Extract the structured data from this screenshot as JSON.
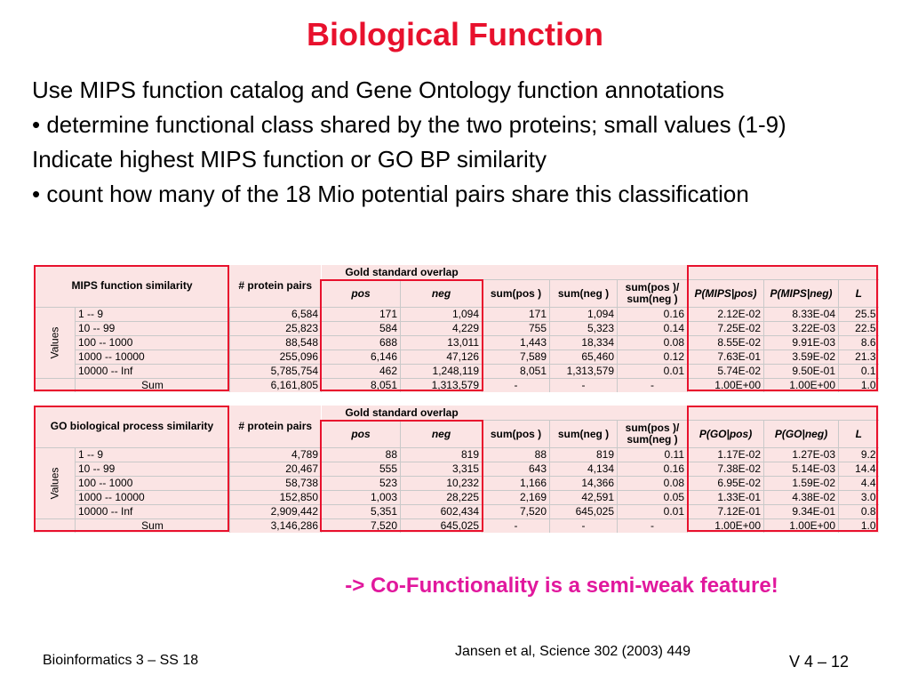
{
  "slide": {
    "title": "Biological Function",
    "bullets": [
      "Use MIPS function catalog and Gene Ontology function annotations",
      "• determine functional class shared by the two proteins; small values (1-9)",
      "Indicate highest MIPS function or GO BP similarity",
      "• count how many of the 18 Mio potential pairs share this classification"
    ],
    "conclusion": "-> Co-Functionality is a semi-weak feature!",
    "footer": {
      "course": "Bioinformatics 3 – SS 18",
      "citation": "Jansen et al, Science 302 (2003) 449",
      "page": "V 4 –  12"
    }
  },
  "tables": [
    {
      "id": "mips",
      "name": "MIPS function similarity",
      "gold_label": "Gold standard overlap",
      "row_axis_label": "Values",
      "headers": {
        "pairs": "# protein pairs",
        "pos": "pos",
        "neg": "neg",
        "sum_pos": "sum(pos )",
        "sum_neg": "sum(neg )",
        "ratio_top": "sum(pos )/",
        "ratio_bottom": "sum(neg )",
        "p_pos": "P(MIPS|pos)",
        "p_neg": "P(MIPS|neg)",
        "l": "L"
      },
      "rows": [
        {
          "range": "1 -- 9",
          "pairs": "6,584",
          "pos": "171",
          "neg": "1,094",
          "sum_pos": "171",
          "sum_neg": "1,094",
          "ratio": "0.16",
          "p_pos": "2.12E-02",
          "p_neg": "8.33E-04",
          "l": "25.5"
        },
        {
          "range": "10 -- 99",
          "pairs": "25,823",
          "pos": "584",
          "neg": "4,229",
          "sum_pos": "755",
          "sum_neg": "5,323",
          "ratio": "0.14",
          "p_pos": "7.25E-02",
          "p_neg": "3.22E-03",
          "l": "22.5"
        },
        {
          "range": "100 -- 1000",
          "pairs": "88,548",
          "pos": "688",
          "neg": "13,011",
          "sum_pos": "1,443",
          "sum_neg": "18,334",
          "ratio": "0.08",
          "p_pos": "8.55E-02",
          "p_neg": "9.91E-03",
          "l": "8.6"
        },
        {
          "range": "1000 -- 10000",
          "pairs": "255,096",
          "pos": "6,146",
          "neg": "47,126",
          "sum_pos": "7,589",
          "sum_neg": "65,460",
          "ratio": "0.12",
          "p_pos": "7.63E-01",
          "p_neg": "3.59E-02",
          "l": "21.3"
        },
        {
          "range": "10000 -- Inf",
          "pairs": "5,785,754",
          "pos": "462",
          "neg": "1,248,119",
          "sum_pos": "8,051",
          "sum_neg": "1,313,579",
          "ratio": "0.01",
          "p_pos": "5.74E-02",
          "p_neg": "9.50E-01",
          "l": "0.1"
        }
      ],
      "sum": {
        "label": "Sum",
        "pairs": "6,161,805",
        "pos": "8,051",
        "neg": "1,313,579",
        "sum_pos": "-",
        "sum_neg": "-",
        "ratio": "-",
        "p_pos": "1.00E+00",
        "p_neg": "1.00E+00",
        "l": "1.0"
      }
    },
    {
      "id": "go",
      "name": "GO biological process similarity",
      "gold_label": "Gold standard overlap",
      "row_axis_label": "Values",
      "headers": {
        "pairs": "# protein pairs",
        "pos": "pos",
        "neg": "neg",
        "sum_pos": "sum(pos )",
        "sum_neg": "sum(neg )",
        "ratio_top": "sum(pos )/",
        "ratio_bottom": "sum(neg )",
        "p_pos": "P(GO|pos)",
        "p_neg": "P(GO|neg)",
        "l": "L"
      },
      "rows": [
        {
          "range": "1 -- 9",
          "pairs": "4,789",
          "pos": "88",
          "neg": "819",
          "sum_pos": "88",
          "sum_neg": "819",
          "ratio": "0.11",
          "p_pos": "1.17E-02",
          "p_neg": "1.27E-03",
          "l": "9.2"
        },
        {
          "range": "10 -- 99",
          "pairs": "20,467",
          "pos": "555",
          "neg": "3,315",
          "sum_pos": "643",
          "sum_neg": "4,134",
          "ratio": "0.16",
          "p_pos": "7.38E-02",
          "p_neg": "5.14E-03",
          "l": "14.4"
        },
        {
          "range": "100 -- 1000",
          "pairs": "58,738",
          "pos": "523",
          "neg": "10,232",
          "sum_pos": "1,166",
          "sum_neg": "14,366",
          "ratio": "0.08",
          "p_pos": "6.95E-02",
          "p_neg": "1.59E-02",
          "l": "4.4"
        },
        {
          "range": "1000 -- 10000",
          "pairs": "152,850",
          "pos": "1,003",
          "neg": "28,225",
          "sum_pos": "2,169",
          "sum_neg": "42,591",
          "ratio": "0.05",
          "p_pos": "1.33E-01",
          "p_neg": "4.38E-02",
          "l": "3.0"
        },
        {
          "range": "10000 -- Inf",
          "pairs": "2,909,442",
          "pos": "5,351",
          "neg": "602,434",
          "sum_pos": "7,520",
          "sum_neg": "645,025",
          "ratio": "0.01",
          "p_pos": "7.12E-01",
          "p_neg": "9.34E-01",
          "l": "0.8"
        }
      ],
      "sum": {
        "label": "Sum",
        "pairs": "3,146,286",
        "pos": "7,520",
        "neg": "645,025",
        "sum_pos": "-",
        "sum_neg": "-",
        "ratio": "-",
        "p_pos": "1.00E+00",
        "p_neg": "1.00E+00",
        "l": "1.0"
      }
    }
  ],
  "colors": {
    "title": "#e8112d",
    "highlight_border": "#e8112d",
    "cell_fill": "#fbe4e4",
    "conclusion": "#e1189d"
  }
}
